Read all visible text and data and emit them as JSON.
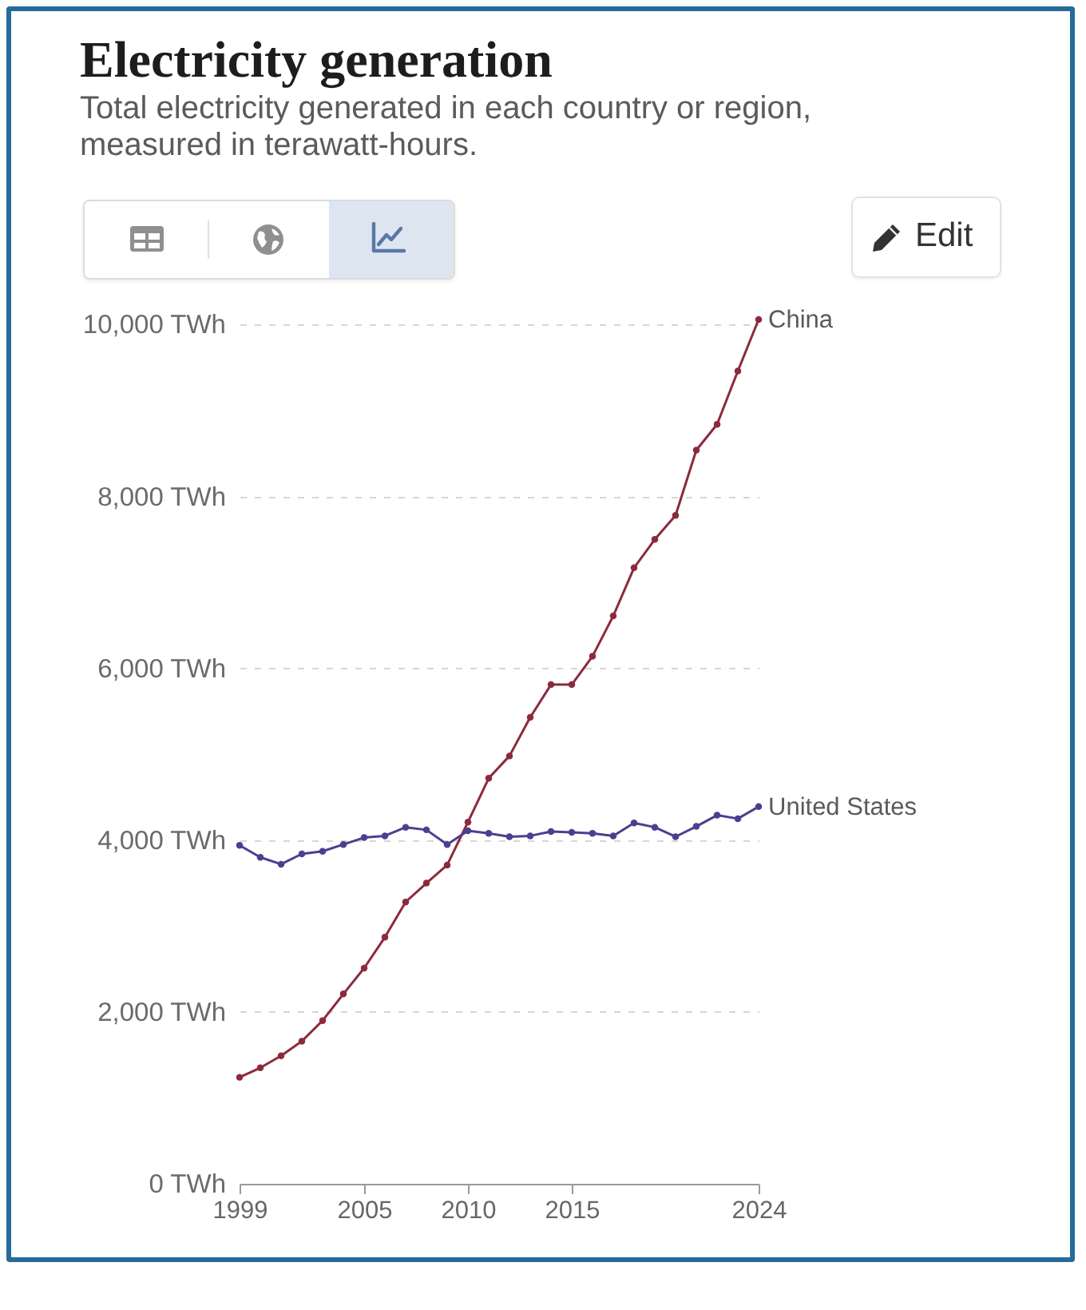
{
  "chart_data": {
    "type": "line",
    "title": "Electricity generation",
    "subtitle": "Total electricity generated in each country or region, measured in terawatt-hours.",
    "annotations": [
      "Edit"
    ],
    "x": [
      1999,
      2000,
      2001,
      2002,
      2003,
      2004,
      2005,
      2006,
      2007,
      2008,
      2009,
      2010,
      2011,
      2012,
      2013,
      2014,
      2015,
      2016,
      2017,
      2018,
      2019,
      2020,
      2021,
      2022,
      2023,
      2024
    ],
    "series": [
      {
        "name": "China",
        "color": "#8c2a3d",
        "values": [
          1240,
          1350,
          1490,
          1660,
          1900,
          2210,
          2510,
          2870,
          3280,
          3500,
          3710,
          4210,
          4720,
          4980,
          5430,
          5810,
          5810,
          6140,
          6610,
          7170,
          7500,
          7780,
          8540,
          8840,
          9460,
          10060
        ]
      },
      {
        "name": "United States",
        "color": "#4e3e8f",
        "values": [
          3940,
          3800,
          3720,
          3840,
          3870,
          3950,
          4030,
          4050,
          4150,
          4120,
          3950,
          4110,
          4080,
          4040,
          4050,
          4100,
          4090,
          4080,
          4050,
          4200,
          4150,
          4040,
          4160,
          4290,
          4250,
          4390
        ]
      }
    ],
    "xlim": [
      1999,
      2024
    ],
    "xticks": [
      1999,
      2005,
      2010,
      2015,
      2024
    ],
    "ylim": [
      0,
      10060
    ],
    "yticks": [
      {
        "value": 0,
        "label": "0 TWh"
      },
      {
        "value": 2000,
        "label": "2,000 TWh"
      },
      {
        "value": 4000,
        "label": "4,000 TWh"
      },
      {
        "value": 6000,
        "label": "6,000 TWh"
      },
      {
        "value": 8000,
        "label": "8,000 TWh"
      },
      {
        "value": 10000,
        "label": "10,000 TWh"
      }
    ],
    "grid": "y",
    "marker": "circle"
  }
}
